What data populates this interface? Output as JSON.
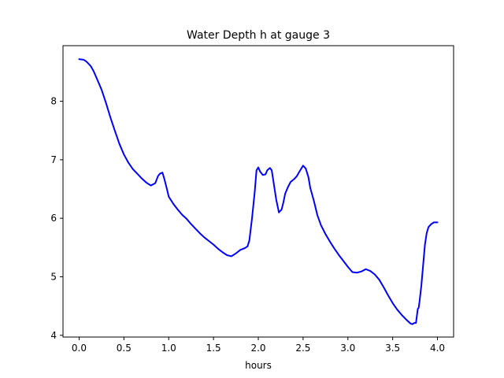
{
  "chart_data": {
    "type": "line",
    "title": "Water Depth h at gauge 3",
    "xlabel": "hours",
    "ylabel": "",
    "xlim": [
      -0.18,
      4.18
    ],
    "ylim": [
      3.97,
      8.95
    ],
    "xticks": [
      0.0,
      0.5,
      1.0,
      1.5,
      2.0,
      2.5,
      3.0,
      3.5,
      4.0
    ],
    "xtick_labels": [
      "0.0",
      "0.5",
      "1.0",
      "1.5",
      "2.0",
      "2.5",
      "3.0",
      "3.5",
      "4.0"
    ],
    "yticks": [
      4,
      5,
      6,
      7,
      8
    ],
    "ytick_labels": [
      "4",
      "5",
      "6",
      "7",
      "8"
    ],
    "grid": false,
    "series": [
      {
        "color": "#0000ff",
        "x": [
          0.0,
          0.05,
          0.08,
          0.1,
          0.13,
          0.16,
          0.2,
          0.25,
          0.3,
          0.35,
          0.4,
          0.45,
          0.5,
          0.55,
          0.6,
          0.65,
          0.7,
          0.75,
          0.8,
          0.85,
          0.88,
          0.9,
          0.93,
          0.95,
          0.98,
          1.0,
          1.05,
          1.1,
          1.15,
          1.2,
          1.25,
          1.3,
          1.35,
          1.4,
          1.45,
          1.5,
          1.55,
          1.6,
          1.65,
          1.7,
          1.75,
          1.8,
          1.85,
          1.88,
          1.9,
          1.93,
          1.96,
          1.98,
          2.0,
          2.02,
          2.05,
          2.08,
          2.1,
          2.13,
          2.15,
          2.17,
          2.2,
          2.23,
          2.26,
          2.28,
          2.3,
          2.33,
          2.36,
          2.4,
          2.43,
          2.46,
          2.5,
          2.53,
          2.56,
          2.58,
          2.62,
          2.66,
          2.7,
          2.75,
          2.8,
          2.85,
          2.9,
          2.95,
          3.0,
          3.05,
          3.1,
          3.15,
          3.2,
          3.25,
          3.3,
          3.35,
          3.4,
          3.45,
          3.5,
          3.55,
          3.6,
          3.65,
          3.7,
          3.72,
          3.74,
          3.76,
          3.78,
          3.79,
          3.8,
          3.82,
          3.84,
          3.86,
          3.88,
          3.9,
          3.93,
          3.96,
          3.98,
          4.0
        ],
        "values": [
          8.72,
          8.71,
          8.68,
          8.65,
          8.6,
          8.52,
          8.38,
          8.2,
          7.97,
          7.72,
          7.49,
          7.27,
          7.09,
          6.95,
          6.84,
          6.76,
          6.68,
          6.61,
          6.56,
          6.6,
          6.72,
          6.76,
          6.78,
          6.68,
          6.5,
          6.37,
          6.25,
          6.15,
          6.06,
          5.99,
          5.9,
          5.82,
          5.74,
          5.67,
          5.61,
          5.55,
          5.48,
          5.42,
          5.37,
          5.35,
          5.4,
          5.46,
          5.49,
          5.52,
          5.62,
          6.0,
          6.45,
          6.82,
          6.87,
          6.8,
          6.74,
          6.75,
          6.82,
          6.86,
          6.82,
          6.62,
          6.32,
          6.1,
          6.15,
          6.27,
          6.42,
          6.53,
          6.62,
          6.67,
          6.72,
          6.8,
          6.9,
          6.85,
          6.7,
          6.52,
          6.3,
          6.05,
          5.88,
          5.73,
          5.6,
          5.48,
          5.37,
          5.27,
          5.17,
          5.08,
          5.07,
          5.09,
          5.13,
          5.1,
          5.04,
          4.95,
          4.82,
          4.68,
          4.55,
          4.44,
          4.35,
          4.27,
          4.2,
          4.19,
          4.21,
          4.21,
          4.45,
          4.47,
          4.58,
          4.85,
          5.2,
          5.55,
          5.75,
          5.85,
          5.9,
          5.93,
          5.93,
          5.93
        ]
      }
    ]
  }
}
